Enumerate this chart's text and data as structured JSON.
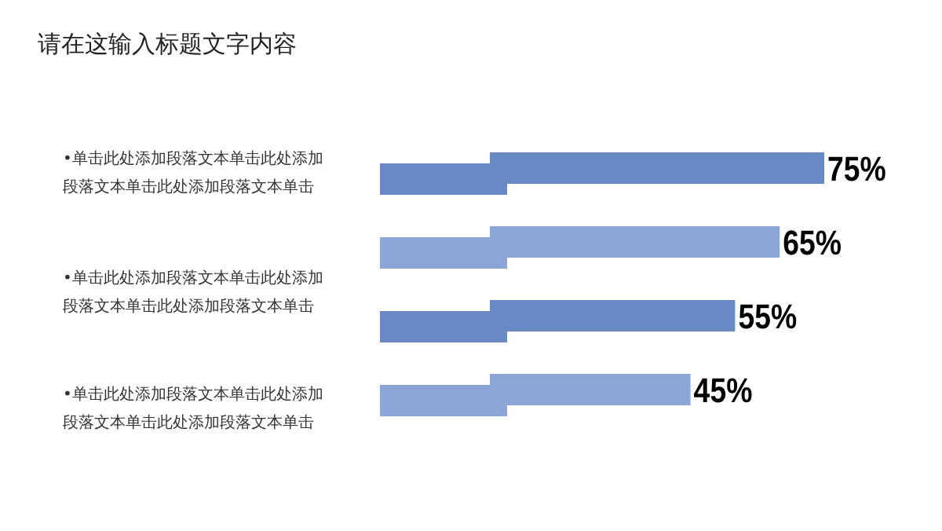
{
  "chart_data": {
    "type": "bar",
    "orientation": "horizontal",
    "title": "请在这输入标题文字内容",
    "categories": [
      null,
      null,
      null,
      null
    ],
    "values": [
      75,
      65,
      55,
      45
    ],
    "colors": [
      "#6889c4",
      "#8ba5d6",
      "#6889c4",
      "#8ba5d6"
    ],
    "value_labels": [
      "75%",
      "65%",
      "55%",
      "45%"
    ],
    "annotations": [
      "•单击此处添加段落文本单击此处添加段落文本单击此处添加段落文本单击",
      "•单击此处添加段落文本单击此处添加段落文本单击此处添加段落文本单击",
      "•单击此处添加段落文本单击此处添加段落文本单击此处添加段落文本单击"
    ]
  }
}
